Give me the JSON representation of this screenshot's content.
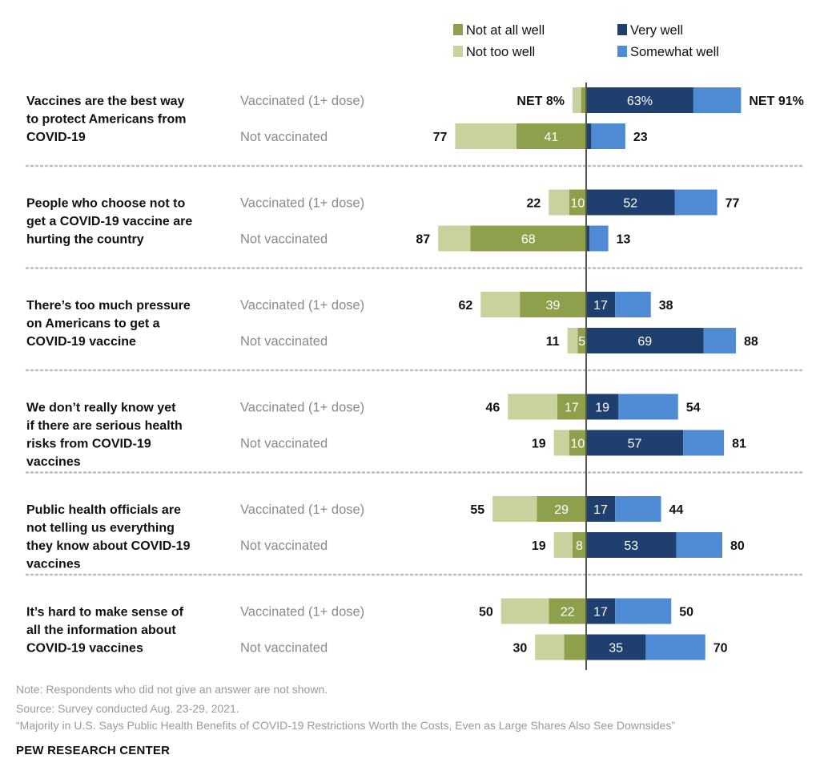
{
  "colors": {
    "not_at_all_well": "#8ea04c",
    "not_too_well": "#c8d29c",
    "very_well": "#1f3f6e",
    "somewhat_well": "#4f8bd4",
    "divider": "#bdbdbd",
    "axis": "#555555"
  },
  "legend": [
    {
      "key": "not_at_all_well",
      "label": "Not at all well"
    },
    {
      "key": "very_well",
      "label": "Very well"
    },
    {
      "key": "not_too_well",
      "label": "Not too well"
    },
    {
      "key": "somewhat_well",
      "label": "Somewhat well"
    }
  ],
  "chart_data": {
    "type": "bar",
    "orientation": "horizontal-diverging",
    "groups": [
      "Vaccinated (1+ dose)",
      "Not vaccinated"
    ],
    "categories": [
      {
        "statement": [
          "Vaccines are the best way",
          "to protect Americans from",
          "COVID-19"
        ],
        "rows": [
          {
            "group": "Vaccinated (1+ dose)",
            "not_at_all_well": 3,
            "not_too_well": 5,
            "very_well": 63,
            "somewhat_well": 28,
            "net_left": "NET 8%",
            "net_right": "NET 91%",
            "label_not_at_all": "",
            "label_very": "63%"
          },
          {
            "group": "Not vaccinated",
            "not_at_all_well": 41,
            "not_too_well": 36,
            "very_well": 3,
            "somewhat_well": 20,
            "net_left": "77",
            "net_right": "23",
            "label_not_at_all": "41",
            "label_very": ""
          }
        ]
      },
      {
        "statement": [
          "People who choose not to",
          "get a COVID-19 vaccine are",
          "hurting the country"
        ],
        "rows": [
          {
            "group": "Vaccinated (1+ dose)",
            "not_at_all_well": 10,
            "not_too_well": 12,
            "very_well": 52,
            "somewhat_well": 25,
            "net_left": "22",
            "net_right": "77",
            "label_not_at_all": "10",
            "label_very": "52"
          },
          {
            "group": "Not vaccinated",
            "not_at_all_well": 68,
            "not_too_well": 19,
            "very_well": 2,
            "somewhat_well": 11,
            "net_left": "87",
            "net_right": "13",
            "label_not_at_all": "68",
            "label_very": ""
          }
        ]
      },
      {
        "statement": [
          "There’s too much pressure",
          "on Americans to get a",
          "COVID-19 vaccine"
        ],
        "rows": [
          {
            "group": "Vaccinated (1+ dose)",
            "not_at_all_well": 39,
            "not_too_well": 23,
            "very_well": 17,
            "somewhat_well": 21,
            "net_left": "62",
            "net_right": "38",
            "label_not_at_all": "39",
            "label_very": "17"
          },
          {
            "group": "Not vaccinated",
            "not_at_all_well": 5,
            "not_too_well": 6,
            "very_well": 69,
            "somewhat_well": 19,
            "net_left": "11",
            "net_right": "88",
            "label_not_at_all": "5",
            "label_very": "69"
          }
        ]
      },
      {
        "statement": [
          "We don’t really know yet",
          "if there are serious health",
          "risks from COVID-19",
          "vaccines"
        ],
        "rows": [
          {
            "group": "Vaccinated (1+ dose)",
            "not_at_all_well": 17,
            "not_too_well": 29,
            "very_well": 19,
            "somewhat_well": 35,
            "net_left": "46",
            "net_right": "54",
            "label_not_at_all": "17",
            "label_very": "19"
          },
          {
            "group": "Not vaccinated",
            "not_at_all_well": 10,
            "not_too_well": 9,
            "very_well": 57,
            "somewhat_well": 24,
            "net_left": "19",
            "net_right": "81",
            "label_not_at_all": "10",
            "label_very": "57"
          }
        ]
      },
      {
        "statement": [
          "Public health officials are",
          "not telling us everything",
          "they know about COVID-19",
          "vaccines"
        ],
        "rows": [
          {
            "group": "Vaccinated (1+ dose)",
            "not_at_all_well": 29,
            "not_too_well": 26,
            "very_well": 17,
            "somewhat_well": 27,
            "net_left": "55",
            "net_right": "44",
            "label_not_at_all": "29",
            "label_very": "17"
          },
          {
            "group": "Not vaccinated",
            "not_at_all_well": 8,
            "not_too_well": 11,
            "very_well": 53,
            "somewhat_well": 27,
            "net_left": "19",
            "net_right": "80",
            "label_not_at_all": "8",
            "label_very": "53"
          }
        ]
      },
      {
        "statement": [
          "It’s hard to make sense of",
          "all the information about",
          "COVID-19 vaccines"
        ],
        "rows": [
          {
            "group": "Vaccinated (1+ dose)",
            "not_at_all_well": 22,
            "not_too_well": 28,
            "very_well": 17,
            "somewhat_well": 33,
            "net_left": "50",
            "net_right": "50",
            "label_not_at_all": "22",
            "label_very": "17"
          },
          {
            "group": "Not vaccinated",
            "not_at_all_well": 13,
            "not_too_well": 17,
            "very_well": 35,
            "somewhat_well": 35,
            "net_left": "30",
            "net_right": "70",
            "label_not_at_all": "",
            "label_very": "35"
          }
        ]
      }
    ]
  },
  "footer": {
    "note": "Note: Respondents who did not give an answer are not shown.",
    "source": "Source: Survey conducted Aug. 23-29, 2021.",
    "report": "“Majority in U.S. Says Public Health Benefits of COVID-19 Restrictions Worth the Costs, Even as Large Shares Also See Downsides”",
    "brand": "PEW RESEARCH CENTER"
  }
}
